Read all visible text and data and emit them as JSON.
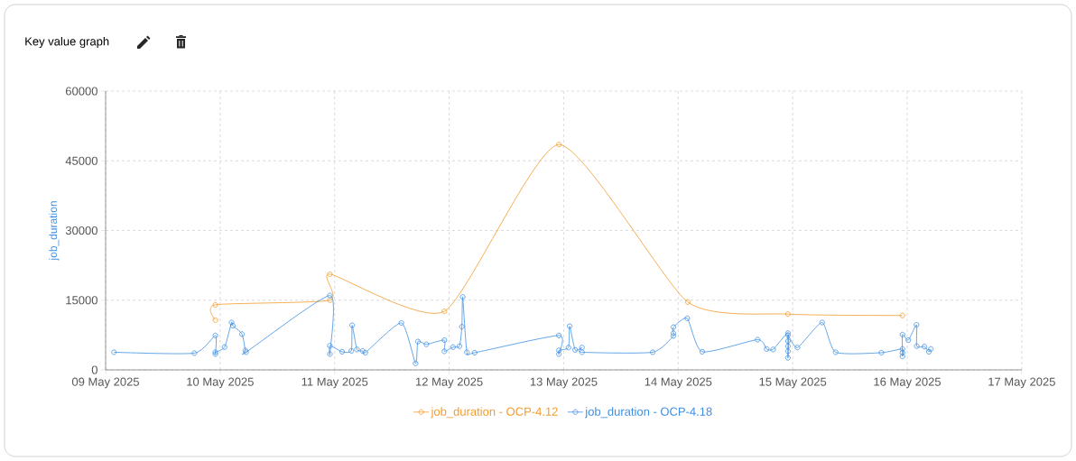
{
  "chart_data": {
    "type": "line",
    "title": "Key value graph",
    "ylabel": "job_duration",
    "xlim": [
      "2025-05-09",
      "2025-05-17"
    ],
    "xticks": [
      {
        "value": "2025-05-09",
        "label": "09 May 2025"
      },
      {
        "value": "2025-05-10",
        "label": "10 May 2025"
      },
      {
        "value": "2025-05-11",
        "label": "11 May 2025"
      },
      {
        "value": "2025-05-12",
        "label": "12 May 2025"
      },
      {
        "value": "2025-05-13",
        "label": "13 May 2025"
      },
      {
        "value": "2025-05-14",
        "label": "14 May 2025"
      },
      {
        "value": "2025-05-15",
        "label": "15 May 2025"
      },
      {
        "value": "2025-05-16",
        "label": "16 May 2025"
      },
      {
        "value": "2025-05-17",
        "label": "17 May 2025"
      }
    ],
    "ylim": [
      0,
      60000
    ],
    "yticks": [
      0,
      15000,
      30000,
      45000,
      60000
    ],
    "grid": true,
    "legend": "bottom",
    "marker": "circle",
    "line_style": "solid",
    "series": [
      {
        "name": "job_duration - OCP-4.12",
        "color": "#f39a2b",
        "x": [
          "2025-05-09T23:00",
          "2025-05-09T23:00",
          "2025-05-10T23:00",
          "2025-05-10T23:00",
          "2025-05-11T23:00",
          "2025-05-12T23:00",
          "2025-05-14T02:00",
          "2025-05-14T23:00",
          "2025-05-15T23:00"
        ],
        "values": [
          10700,
          14000,
          15000,
          20600,
          12600,
          48500,
          14600,
          12000,
          11700
        ]
      },
      {
        "name": "job_duration - OCP-4.18",
        "color": "#3d8fe3",
        "x": [
          "2025-05-09T01:45",
          "2025-05-09T18:35",
          "2025-05-09T23:00",
          "2025-05-09T23:00",
          "2025-05-09T23:00",
          "2025-05-10T00:56",
          "2025-05-10T02:24",
          "2025-05-10T02:40",
          "2025-05-10T04:35",
          "2025-05-10T05:17",
          "2025-05-10T05:26",
          "2025-05-10T23:00",
          "2025-05-10T23:00",
          "2025-05-10T23:00",
          "2025-05-11T01:34",
          "2025-05-11T03:30",
          "2025-05-11T03:40",
          "2025-05-11T04:40",
          "2025-05-11T05:51",
          "2025-05-11T06:26",
          "2025-05-11T13:59",
          "2025-05-11T16:57",
          "2025-05-11T17:27",
          "2025-05-11T19:13",
          "2025-05-11T23:00",
          "2025-05-11T23:00",
          "2025-05-12T00:49",
          "2025-05-12T02:10",
          "2025-05-12T02:40",
          "2025-05-12T02:50",
          "2025-05-12T03:43",
          "2025-05-12T05:21",
          "2025-05-12T23:00",
          "2025-05-12T23:00",
          "2025-05-12T23:00",
          "2025-05-13T01:00",
          "2025-05-13T01:15",
          "2025-05-13T02:24",
          "2025-05-13T03:50",
          "2025-05-13T03:50",
          "2025-05-13T18:39",
          "2025-05-13T23:00",
          "2025-05-13T23:00",
          "2025-05-13T23:00",
          "2025-05-14T01:54",
          "2025-05-14T05:02",
          "2025-05-14T16:38",
          "2025-05-14T18:32",
          "2025-05-14T19:54",
          "2025-05-14T23:00",
          "2025-05-14T23:00",
          "2025-05-14T23:00",
          "2025-05-14T23:00",
          "2025-05-14T23:00",
          "2025-05-14T23:00",
          "2025-05-15T01:00",
          "2025-05-15T06:10",
          "2025-05-15T09:00",
          "2025-05-15T18:35",
          "2025-05-15T23:00",
          "2025-05-15T23:00",
          "2025-05-15T23:00",
          "2025-05-15T23:00",
          "2025-05-16T00:14",
          "2025-05-16T01:57",
          "2025-05-16T02:00",
          "2025-05-16T03:36",
          "2025-05-16T04:32",
          "2025-05-16T04:58"
        ],
        "values": [
          3800,
          3600,
          7400,
          3400,
          3800,
          4900,
          10200,
          9500,
          7700,
          4200,
          3800,
          16000,
          3400,
          5200,
          3900,
          4100,
          9600,
          4400,
          4100,
          3700,
          10100,
          1400,
          6100,
          5500,
          6400,
          4000,
          4900,
          5100,
          9300,
          15700,
          3800,
          3700,
          7400,
          3400,
          4200,
          4800,
          9400,
          4300,
          4800,
          3800,
          3800,
          7300,
          7900,
          9200,
          11100,
          3900,
          6500,
          4500,
          4400,
          7900,
          2600,
          4000,
          5100,
          6200,
          7500,
          4800,
          10200,
          3800,
          3700,
          4500,
          2900,
          3700,
          7600,
          6400,
          9700,
          5100,
          5000,
          3900,
          4500
        ]
      }
    ]
  }
}
